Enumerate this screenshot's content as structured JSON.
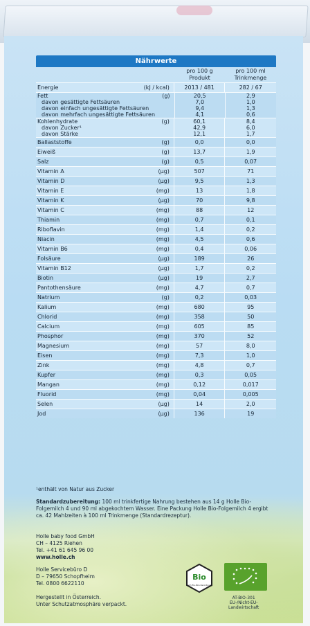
{
  "table": {
    "title": "Nährwerte",
    "col1_header": "pro 100 g\nProdukt",
    "col2_header": "pro 100 ml\nTrinkmenge",
    "rows": [
      {
        "name": "Energie",
        "unit": "(kJ / kcal)",
        "v1": "2013 / 481",
        "v2": "282 / 67"
      },
      {
        "names": [
          "Fett",
          "davon gesättigte Fettsäuren",
          "davon einfach ungesättigte Fettsäuren",
          "davon mehrfach ungesättigte Fettsäuren"
        ],
        "unit": "(g)",
        "v1": [
          "20,5",
          "7,0",
          "9,4",
          "4,1"
        ],
        "v2": [
          "2,9",
          "1,0",
          "1,3",
          "0,6"
        ]
      },
      {
        "names": [
          "Kohlenhydrate",
          "davon Zucker¹",
          "davon Stärke"
        ],
        "unit": "(g)",
        "v1": [
          "60,1",
          "42,9",
          "12,1"
        ],
        "v2": [
          "8,4",
          "6,0",
          "1,7"
        ]
      },
      {
        "name": "Ballaststoffe",
        "unit": "(g)",
        "v1": "0,0",
        "v2": "0,0"
      },
      {
        "name": "Eiweiß",
        "unit": "(g)",
        "v1": "13,7",
        "v2": "1,9"
      },
      {
        "name": "Salz",
        "unit": "(g)",
        "v1": "0,5",
        "v2": "0,07"
      },
      {
        "name": "Vitamin A",
        "unit": "(µg)",
        "v1": "507",
        "v2": "71"
      },
      {
        "name": "Vitamin D",
        "unit": "(µg)",
        "v1": "9,5",
        "v2": "1,3"
      },
      {
        "name": "Vitamin E",
        "unit": "(mg)",
        "v1": "13",
        "v2": "1,8"
      },
      {
        "name": "Vitamin K",
        "unit": "(µg)",
        "v1": "70",
        "v2": "9,8"
      },
      {
        "name": "Vitamin C",
        "unit": "(mg)",
        "v1": "88",
        "v2": "12"
      },
      {
        "name": "Thiamin",
        "unit": "(mg)",
        "v1": "0,7",
        "v2": "0,1"
      },
      {
        "name": "Riboflavin",
        "unit": "(mg)",
        "v1": "1,4",
        "v2": "0,2"
      },
      {
        "name": "Niacin",
        "unit": "(mg)",
        "v1": "4,5",
        "v2": "0,6"
      },
      {
        "name": "Vitamin B6",
        "unit": "(mg)",
        "v1": "0,4",
        "v2": "0,06"
      },
      {
        "name": "Folsäure",
        "unit": "(µg)",
        "v1": "189",
        "v2": "26"
      },
      {
        "name": "Vitamin B12",
        "unit": "(µg)",
        "v1": "1,7",
        "v2": "0,2"
      },
      {
        "name": "Biotin",
        "unit": "(µg)",
        "v1": "19",
        "v2": "2,7"
      },
      {
        "name": "Pantothensäure",
        "unit": "(mg)",
        "v1": "4,7",
        "v2": "0,7"
      },
      {
        "name": "Natrium",
        "unit": "(g)",
        "v1": "0,2",
        "v2": "0,03"
      },
      {
        "name": "Kalium",
        "unit": "(mg)",
        "v1": "680",
        "v2": "95"
      },
      {
        "name": "Chlorid",
        "unit": "(mg)",
        "v1": "358",
        "v2": "50"
      },
      {
        "name": "Calcium",
        "unit": "(mg)",
        "v1": "605",
        "v2": "85"
      },
      {
        "name": "Phosphor",
        "unit": "(mg)",
        "v1": "370",
        "v2": "52"
      },
      {
        "name": "Magnesium",
        "unit": "(mg)",
        "v1": "57",
        "v2": "8,0"
      },
      {
        "name": "Eisen",
        "unit": "(mg)",
        "v1": "7,3",
        "v2": "1,0"
      },
      {
        "name": "Zink",
        "unit": "(mg)",
        "v1": "4,8",
        "v2": "0,7"
      },
      {
        "name": "Kupfer",
        "unit": "(mg)",
        "v1": "0,3",
        "v2": "0,05"
      },
      {
        "name": "Mangan",
        "unit": "(mg)",
        "v1": "0,12",
        "v2": "0,017"
      },
      {
        "name": "Fluorid",
        "unit": "(mg)",
        "v1": "0,04",
        "v2": "0,005"
      },
      {
        "name": "Selen",
        "unit": "(µg)",
        "v1": "14",
        "v2": "2,0"
      },
      {
        "name": "Jod",
        "unit": "(µg)",
        "v1": "136",
        "v2": "19"
      }
    ]
  },
  "footnote": "¹enthält von Natur aus Zucker",
  "preparation": {
    "label": "Standardzubereitung:",
    "text": "100 ml trinkfertige Nahrung bestehen aus 14 g Holle Bio-Folgemilch 4 und 90 ml abgekochtem Wasser. Eine Packung Holle Bio-Folgemilch 4 ergibt ca. 42 Mahlzeiten à 100 ml Trinkmenge (Standardrezeptur)."
  },
  "company": {
    "name": "Holle baby food GmbH",
    "city": "CH – 4125 Riehen",
    "phone": "Tel. +41 61 645 96 00",
    "web": "www.holle.ch"
  },
  "service": {
    "name": "Holle Servicebüro D",
    "city": "D – 79650 Schopfheim",
    "phone": "Tel. 0800 6622110"
  },
  "origin": {
    "line1": "Hergestellt in Österreich.",
    "line2": "Unter Schutzatmosphäre verpackt."
  },
  "logos": {
    "bio": "Bio",
    "bio_sub": "nach EG-Öko-Verordnung",
    "eu_code": "AT-BIO-301",
    "eu_agri": "EU-/Nicht-EU-",
    "eu_agri2": "Landwirtschaft"
  },
  "colors": {
    "header_blue": "#1e78c4",
    "bio_green": "#58a22c"
  }
}
